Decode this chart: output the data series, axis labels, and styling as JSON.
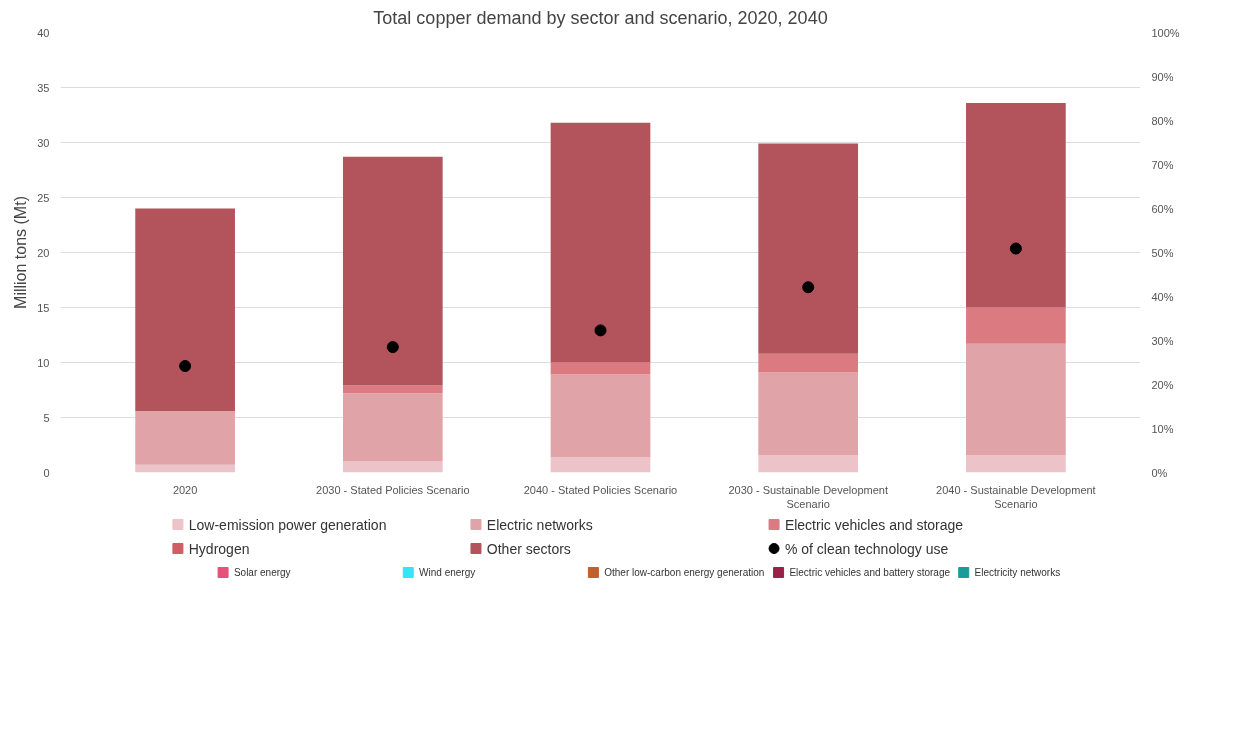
{
  "chart_data": {
    "type": "bar",
    "title": "Total copper demand by sector and scenario, 2020, 2040",
    "ylabel": "Million tons (Mt)",
    "categories": [
      "2020",
      "2030 - Stated Policies Scenario",
      "2040 - Stated Policies Scenario",
      "2030 - Sustainable Development Scenario",
      "2040 - Sustainable Development Scenario"
    ],
    "stacked": true,
    "grid": "y",
    "legend": "bottom",
    "ylim": [
      0,
      40
    ],
    "yticks": [
      0,
      5,
      10,
      15,
      20,
      25,
      30,
      35,
      40
    ],
    "y2lim": [
      0,
      100
    ],
    "y2ticks": [
      {
        "value": 0,
        "label": "0%"
      },
      {
        "value": 10,
        "label": "10%"
      },
      {
        "value": 20,
        "label": "20%"
      },
      {
        "value": 30,
        "label": "30%"
      },
      {
        "value": 40,
        "label": "40%"
      },
      {
        "value": 50,
        "label": "50%"
      },
      {
        "value": 60,
        "label": "60%"
      },
      {
        "value": 70,
        "label": "70%"
      },
      {
        "value": 80,
        "label": "80%"
      },
      {
        "value": 90,
        "label": "90%"
      },
      {
        "value": 100,
        "label": "100%"
      }
    ],
    "series": [
      {
        "name": "Low-emission power generation",
        "color": "#ecc3c8",
        "values": [
          0.7,
          1.0,
          1.4,
          1.6,
          1.6
        ]
      },
      {
        "name": "Electric networks",
        "color": "#e0a3a8",
        "values": [
          4.9,
          6.2,
          7.5,
          7.5,
          10.1
        ]
      },
      {
        "name": "Electric vehicles and storage",
        "color": "#dc7a82",
        "values": [
          0,
          0.7,
          1.1,
          1.7,
          3.3
        ]
      },
      {
        "name": "Hydrogen",
        "color": "#cf5e66",
        "values": [
          0,
          0,
          0,
          0,
          0
        ]
      },
      {
        "name": "Other sectors",
        "color": "#b3535c",
        "values": [
          18.4,
          20.8,
          21.8,
          19.1,
          18.6
        ]
      },
      {
        "name": "% of clean technology use",
        "type": "scatter",
        "axis": "y2",
        "marker": "circle",
        "color": "#000000",
        "values": [
          24.2,
          28.5,
          32.3,
          42.1,
          50.9
        ]
      },
      {
        "name": "Solar energy",
        "color": "#e8507a",
        "values": [
          null,
          null,
          null,
          null,
          null
        ]
      },
      {
        "name": "Wind energy",
        "color": "#33e6f5",
        "values": [
          null,
          null,
          null,
          null,
          null
        ]
      },
      {
        "name": "Other low-carbon energy generation",
        "color": "#c2602c",
        "values": [
          null,
          null,
          null,
          null,
          null
        ]
      },
      {
        "name": "Electric vehicles and battery storage",
        "color": "#9a2148",
        "values": [
          null,
          null,
          null,
          null,
          null
        ]
      },
      {
        "name": "Electricity networks",
        "color": "#1a9a9a",
        "values": [
          null,
          null,
          null,
          null,
          null
        ]
      }
    ]
  }
}
